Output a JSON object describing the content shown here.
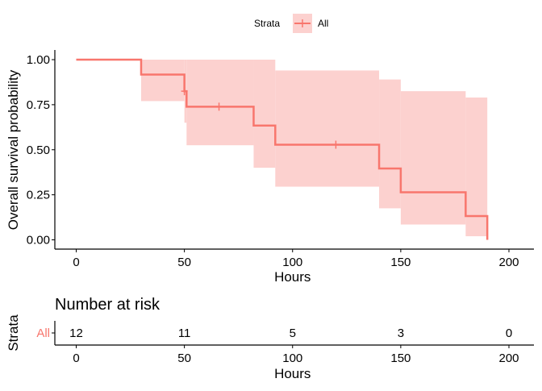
{
  "chart_data": [
    {
      "type": "line",
      "subtype": "kaplan-meier step",
      "xlabel": "Hours",
      "ylabel": "Overall survival probability",
      "xlim": [
        -5,
        210
      ],
      "ylim": [
        -0.04,
        1.04
      ],
      "x_ticks": [
        0,
        50,
        100,
        150,
        200
      ],
      "y_ticks": [
        0.0,
        0.25,
        0.5,
        0.75,
        1.0
      ],
      "y_tick_labels": [
        "0.00",
        "0.25",
        "0.50",
        "0.75",
        "1.00"
      ],
      "grid": false,
      "legend": {
        "title": "Strata",
        "position": "top",
        "entries": [
          "All"
        ]
      },
      "colors": {
        "line": "#F8766D",
        "band": "#FCD1CF"
      },
      "series": [
        {
          "name": "All",
          "step_times": [
            0,
            30,
            50,
            51,
            82,
            92,
            140,
            150,
            180,
            190
          ],
          "survival": [
            1.0,
            0.917,
            0.825,
            0.739,
            0.634,
            0.528,
            0.396,
            0.264,
            0.132,
            0.0
          ],
          "ci_lower": [
            1.0,
            0.77,
            0.65,
            0.525,
            0.4,
            0.295,
            0.175,
            0.085,
            0.02,
            0.0
          ],
          "ci_upper": [
            1.0,
            1.0,
            1.0,
            1.0,
            1.0,
            0.94,
            0.89,
            0.825,
            0.79,
            0.0
          ],
          "censored": [
            {
              "x": 50,
              "y": 0.825
            },
            {
              "x": 66,
              "y": 0.739
            },
            {
              "x": 120,
              "y": 0.528
            }
          ]
        }
      ]
    },
    {
      "type": "table",
      "title": "Number at risk",
      "xlabel": "Hours",
      "ylabel": "Strata",
      "x_ticks": [
        0,
        50,
        100,
        150,
        200
      ],
      "rows": [
        {
          "stratum": "All",
          "times": [
            0,
            50,
            100,
            150,
            200
          ],
          "counts": [
            "12",
            "11",
            "5",
            "3",
            "0"
          ]
        }
      ]
    }
  ]
}
